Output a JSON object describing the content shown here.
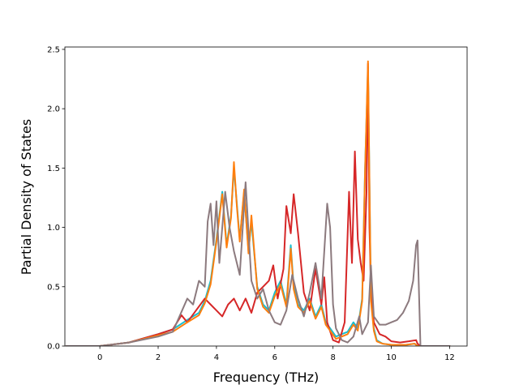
{
  "chart_data": {
    "type": "line",
    "title": "",
    "xlabel": "Frequency (THz)",
    "ylabel": "Partial Density of States",
    "xlim": [
      -1.2,
      12.6
    ],
    "ylim": [
      0,
      2.52
    ],
    "xticks": [
      0,
      2,
      4,
      6,
      8,
      10,
      12
    ],
    "yticks": [
      0.0,
      0.5,
      1.0,
      1.5,
      2.0,
      2.5
    ],
    "xtick_labels": [
      "0",
      "2",
      "4",
      "6",
      "8",
      "10",
      "12"
    ],
    "ytick_labels": [
      "0.0",
      "0.5",
      "1.0",
      "1.5",
      "2.0",
      "2.5"
    ],
    "grid": false,
    "legend": "none",
    "series": [
      {
        "color": "#17becf",
        "x": [
          -1.15,
          0.0,
          1.0,
          2.0,
          2.5,
          3.0,
          3.4,
          3.6,
          3.8,
          4.0,
          4.2,
          4.35,
          4.5,
          4.6,
          4.7,
          4.8,
          4.95,
          5.1,
          5.2,
          5.4,
          5.6,
          5.8,
          6.0,
          6.2,
          6.4,
          6.55,
          6.65,
          6.8,
          7.0,
          7.2,
          7.4,
          7.6,
          7.75,
          7.9,
          8.1,
          8.3,
          8.5,
          8.7,
          8.85,
          9.0,
          9.1,
          9.2,
          9.3,
          9.4,
          9.5,
          9.7,
          10.0,
          10.5,
          10.8,
          10.9,
          11.0,
          12.0
        ],
        "y": [
          0.0,
          0.0,
          0.03,
          0.1,
          0.14,
          0.22,
          0.28,
          0.38,
          0.55,
          0.9,
          1.3,
          0.85,
          1.1,
          1.5,
          1.2,
          0.9,
          1.3,
          0.8,
          1.05,
          0.5,
          0.35,
          0.3,
          0.45,
          0.55,
          0.35,
          0.85,
          0.5,
          0.35,
          0.3,
          0.4,
          0.25,
          0.35,
          0.2,
          0.15,
          0.08,
          0.1,
          0.12,
          0.2,
          0.15,
          0.4,
          1.5,
          2.35,
          0.4,
          0.15,
          0.05,
          0.02,
          0.01,
          0.01,
          0.02,
          0.0,
          0.0,
          0.0
        ]
      },
      {
        "color": "#d62728",
        "x": [
          -1.15,
          0.0,
          1.0,
          2.0,
          2.5,
          2.8,
          3.0,
          3.3,
          3.6,
          3.8,
          4.0,
          4.2,
          4.4,
          4.6,
          4.8,
          5.0,
          5.2,
          5.4,
          5.6,
          5.8,
          5.95,
          6.1,
          6.3,
          6.4,
          6.55,
          6.65,
          6.8,
          7.0,
          7.2,
          7.4,
          7.6,
          7.7,
          7.8,
          8.0,
          8.2,
          8.4,
          8.55,
          8.65,
          8.75,
          8.85,
          8.95,
          9.05,
          9.15,
          9.2,
          9.25,
          9.3,
          9.4,
          9.6,
          9.8,
          10.0,
          10.3,
          10.6,
          10.85,
          10.9,
          11.0,
          12.0
        ],
        "y": [
          0.0,
          0.0,
          0.03,
          0.1,
          0.14,
          0.26,
          0.2,
          0.3,
          0.4,
          0.35,
          0.3,
          0.25,
          0.35,
          0.4,
          0.3,
          0.4,
          0.28,
          0.45,
          0.5,
          0.55,
          0.68,
          0.4,
          0.65,
          1.18,
          0.95,
          1.28,
          0.95,
          0.45,
          0.3,
          0.65,
          0.35,
          0.58,
          0.2,
          0.05,
          0.03,
          0.2,
          1.3,
          0.7,
          1.64,
          0.9,
          0.7,
          0.55,
          1.3,
          2.38,
          1.0,
          0.5,
          0.2,
          0.1,
          0.08,
          0.04,
          0.03,
          0.04,
          0.05,
          0.02,
          0.0,
          0.0
        ]
      },
      {
        "color": "#ff7f0e",
        "x": [
          -1.15,
          0.0,
          1.0,
          2.0,
          2.5,
          3.0,
          3.4,
          3.6,
          3.8,
          4.0,
          4.2,
          4.35,
          4.5,
          4.6,
          4.7,
          4.8,
          4.95,
          5.1,
          5.2,
          5.4,
          5.6,
          5.8,
          6.0,
          6.2,
          6.4,
          6.55,
          6.65,
          6.8,
          7.0,
          7.2,
          7.4,
          7.6,
          7.75,
          7.9,
          8.1,
          8.3,
          8.5,
          8.7,
          8.85,
          9.0,
          9.1,
          9.2,
          9.3,
          9.4,
          9.5,
          9.7,
          10.0,
          10.5,
          10.8,
          10.9,
          11.0,
          12.0
        ],
        "y": [
          0.0,
          0.0,
          0.03,
          0.09,
          0.12,
          0.2,
          0.26,
          0.36,
          0.52,
          0.88,
          1.28,
          0.83,
          1.08,
          1.55,
          1.18,
          0.88,
          1.32,
          0.78,
          1.1,
          0.48,
          0.33,
          0.28,
          0.42,
          0.52,
          0.33,
          0.82,
          0.48,
          0.33,
          0.28,
          0.38,
          0.23,
          0.33,
          0.18,
          0.13,
          0.06,
          0.08,
          0.1,
          0.18,
          0.13,
          0.38,
          1.48,
          2.4,
          0.38,
          0.13,
          0.04,
          0.02,
          0.01,
          0.01,
          0.02,
          0.0,
          0.0,
          0.0
        ]
      },
      {
        "color": "#8c7a7e",
        "x": [
          -1.15,
          0.0,
          1.0,
          2.0,
          2.5,
          3.0,
          3.2,
          3.4,
          3.6,
          3.7,
          3.8,
          3.9,
          4.0,
          4.1,
          4.3,
          4.45,
          4.6,
          4.8,
          5.0,
          5.2,
          5.4,
          5.6,
          5.8,
          6.0,
          6.2,
          6.4,
          6.6,
          6.8,
          7.0,
          7.2,
          7.4,
          7.6,
          7.8,
          7.9,
          8.0,
          8.1,
          8.3,
          8.5,
          8.7,
          8.9,
          9.0,
          9.2,
          9.3,
          9.4,
          9.6,
          9.8,
          10.0,
          10.2,
          10.4,
          10.6,
          10.75,
          10.85,
          10.9,
          11.0,
          12.0
        ],
        "y": [
          0.0,
          0.0,
          0.03,
          0.08,
          0.12,
          0.4,
          0.35,
          0.55,
          0.5,
          1.05,
          1.2,
          0.85,
          1.22,
          0.7,
          1.3,
          1.0,
          0.8,
          0.6,
          1.38,
          0.55,
          0.4,
          0.48,
          0.3,
          0.2,
          0.18,
          0.3,
          0.6,
          0.4,
          0.25,
          0.45,
          0.7,
          0.4,
          1.2,
          1.0,
          0.35,
          0.15,
          0.05,
          0.03,
          0.08,
          0.25,
          0.1,
          0.2,
          0.68,
          0.25,
          0.18,
          0.18,
          0.2,
          0.22,
          0.28,
          0.38,
          0.55,
          0.85,
          0.89,
          0.0,
          0.0
        ]
      }
    ]
  }
}
